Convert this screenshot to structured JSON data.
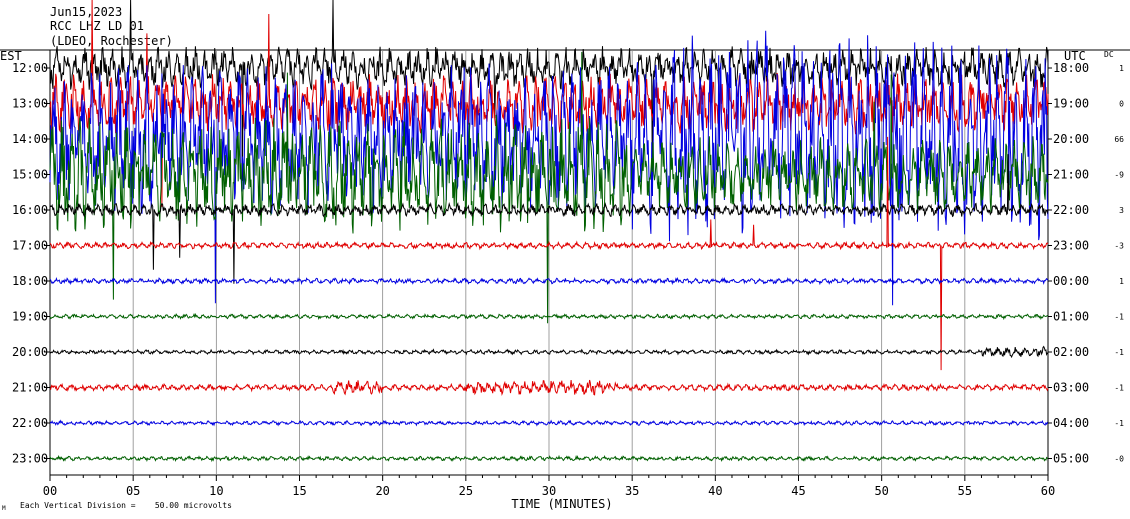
{
  "header": {
    "date": "Jun15,2023",
    "station": "RCC LHZ LD 01",
    "location": "(LDEO, Rochester)"
  },
  "colors": {
    "traces": [
      "#000000",
      "#e00000",
      "#0000e0",
      "#006000"
    ],
    "grid": "#888888",
    "frame": "#000000"
  },
  "chart_data": {
    "type": "line",
    "title": "",
    "left_axis_label": "EST",
    "right_axis_label": "UTC",
    "dc_label": "DC",
    "xlabel": "TIME (MINUTES)",
    "xlim": [
      0,
      60
    ],
    "x_ticks": [
      "00",
      "05",
      "10",
      "15",
      "20",
      "25",
      "30",
      "35",
      "40",
      "45",
      "50",
      "55",
      "60"
    ],
    "rows": [
      {
        "est": "12:00",
        "utc": "18:00",
        "dc": "1"
      },
      {
        "est": "13:00",
        "utc": "19:00",
        "dc": "0"
      },
      {
        "est": "14:00",
        "utc": "20:00",
        "dc": "66"
      },
      {
        "est": "15:00",
        "utc": "21:00",
        "dc": "-9"
      },
      {
        "est": "16:00",
        "utc": "22:00",
        "dc": "3"
      },
      {
        "est": "17:00",
        "utc": "23:00",
        "dc": "-3"
      },
      {
        "est": "18:00",
        "utc": "00:00",
        "dc": "1"
      },
      {
        "est": "19:00",
        "utc": "01:00",
        "dc": "-1"
      },
      {
        "est": "20:00",
        "utc": "02:00",
        "dc": "-1"
      },
      {
        "est": "21:00",
        "utc": "03:00",
        "dc": "-1"
      },
      {
        "est": "22:00",
        "utc": "04:00",
        "dc": "-1"
      },
      {
        "est": "23:00",
        "utc": "05:00",
        "dc": "-0"
      }
    ],
    "scale_note": "Each Vertical Division =    50.00 microvolts"
  }
}
